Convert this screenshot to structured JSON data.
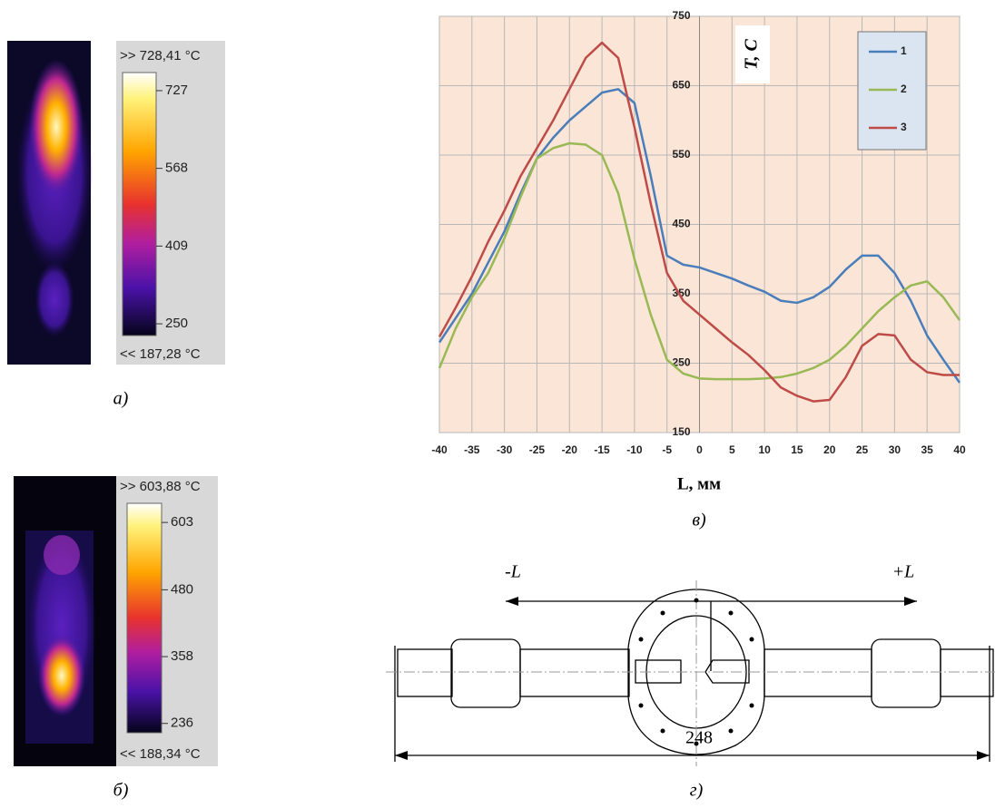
{
  "panels": {
    "a": {
      "max_label": ">> 728,41 °C",
      "min_label": "<< 187,28 °C",
      "scale_lim": [
        226,
        764
      ],
      "scale_ticks": [
        727,
        568,
        409,
        250
      ],
      "caption": "а)"
    },
    "b": {
      "max_label": ">> 603,88 °C",
      "min_label": "<< 188,34 °C",
      "scale_lim": [
        219,
        638
      ],
      "scale_ticks": [
        603,
        480,
        358,
        236
      ],
      "caption": "б)"
    },
    "d": {
      "minus_label": "-L",
      "plus_label": "+L",
      "length_label": "248",
      "caption": "г)"
    }
  },
  "chart_data": {
    "type": "line",
    "caption": "в)",
    "x_label": "L, мм",
    "y_label": "T, C",
    "x": [
      -40,
      -37.5,
      -35,
      -32.5,
      -30,
      -27.5,
      -25,
      -22.5,
      -20,
      -17.5,
      -15,
      -12.5,
      -10,
      -7.5,
      -5,
      -2.5,
      0,
      2.5,
      5,
      7.5,
      10,
      12.5,
      15,
      17.5,
      20,
      22.5,
      25,
      27.5,
      30,
      32.5,
      35,
      37.5,
      40
    ],
    "series": [
      {
        "name": "1",
        "color": "#4a7ebb",
        "values": [
          280,
          315,
          350,
          395,
          440,
          495,
          545,
          575,
          600,
          620,
          640,
          645,
          625,
          520,
          405,
          392,
          388,
          380,
          372,
          362,
          353,
          340,
          337,
          345,
          360,
          385,
          405,
          405,
          380,
          340,
          290,
          255,
          222
        ]
      },
      {
        "name": "2",
        "color": "#98b954",
        "values": [
          243,
          300,
          345,
          380,
          430,
          490,
          545,
          560,
          567,
          565,
          550,
          495,
          400,
          320,
          255,
          235,
          228,
          227,
          227,
          227,
          228,
          230,
          235,
          243,
          255,
          275,
          300,
          325,
          345,
          362,
          368,
          345,
          312
        ]
      },
      {
        "name": "3",
        "color": "#be4b48",
        "values": [
          288,
          330,
          375,
          425,
          470,
          520,
          560,
          600,
          645,
          690,
          712,
          690,
          590,
          480,
          380,
          340,
          320,
          300,
          280,
          262,
          240,
          215,
          203,
          195,
          197,
          230,
          275,
          292,
          290,
          255,
          237,
          233,
          233
        ]
      }
    ],
    "xlim": [
      -40,
      40
    ],
    "ylim": [
      150,
      750
    ],
    "xticks": [
      -40,
      -35,
      -30,
      -25,
      -20,
      -15,
      -10,
      -5,
      0,
      5,
      10,
      15,
      20,
      25,
      30,
      35,
      40
    ],
    "yticks": [
      150,
      250,
      350,
      450,
      550,
      650,
      750
    ],
    "grid": true,
    "legend": "upper right",
    "background": "#fbe5d6"
  }
}
